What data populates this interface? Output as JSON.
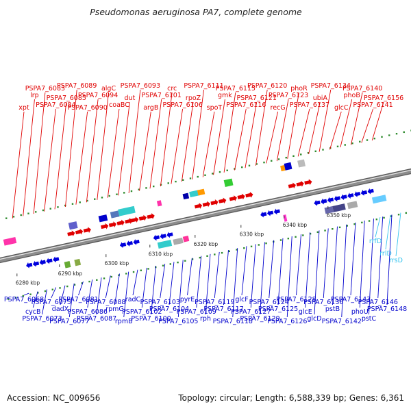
{
  "title": "Pseudomonas aeruginosa PA7, complete genome",
  "footer": {
    "accession": "Accession: NC_009656",
    "summary": "Topology: circular; Length: 6,588,339 bp; Genes: 6,361"
  },
  "colors": {
    "forward_label": "#e00000",
    "reverse_label": "#0000cc",
    "rna_label": "#33c3ee",
    "backbone": "#8c8c8c",
    "tick_dots": "#2e8b2e"
  },
  "scale_ticks": [
    "6280 kbp",
    "6290 kbp",
    "6300 kbp",
    "6310 kbp",
    "6320 kbp",
    "6330 kbp",
    "6340 kbp",
    "6350 kbp"
  ],
  "forward_labels": [
    "xpt",
    "lrp",
    "PSPA7_6083",
    "PSPA7_6084",
    "PSPA7_6085",
    "PSPA7_6089",
    "PSPA7_6090",
    "PSPA7_6094",
    "algC",
    "coaBC",
    "dut",
    "PSPA7_6093",
    "argB",
    "PSPA7_6101",
    "crc",
    "PSPA7_6106",
    "rpoZ",
    "PSPA7_6111",
    "spoT",
    "gmk",
    "PSPA7_6115",
    "PSPA7_6116",
    "PSPA7_6121",
    "PSPA7_6120",
    "recG",
    "PSPA7_6123",
    "phoR",
    "PSPA7_6137",
    "ubiA",
    "PSPA7_6134",
    "glcC",
    "phoB",
    "PSPA7_6140",
    "PSPA7_6141",
    "PSPA7_6156"
  ],
  "reverse_labels": [
    "PSPA7_6068",
    "cycB",
    "PSPA7_6073",
    "PSPA7_6075",
    "dadX",
    "PSPA7_6077",
    "PSPA7_6081",
    "PSPA7_6086",
    "PSPA7_6087",
    "PSPA7_6088",
    "rpmG",
    "rpmB",
    "radC",
    "PSPA7_6102",
    "PSPA7_6100",
    "PSPA7_6103",
    "PSPA7_6104",
    "PSPA7_6105",
    "pyrE",
    "PSPA7_6109",
    "rph",
    "PSPA7_6119",
    "PSPA7_6117",
    "PSPA7_6118",
    "glcF",
    "PSPA7_6127",
    "PSPA7_6129",
    "PSPA7_6124",
    "PSPA7_6125",
    "PSPA7_6126",
    "PSPA7_6128",
    "glcE",
    "glcD",
    "PSPA7_6136",
    "pstB",
    "PSPA7_6142",
    "PSPA7_6143",
    "phoU",
    "pstC",
    "PSPA7_6146",
    "PSPA7_6148"
  ],
  "rna_labels": [
    "rrfD",
    "rrlD",
    "rrsD"
  ]
}
